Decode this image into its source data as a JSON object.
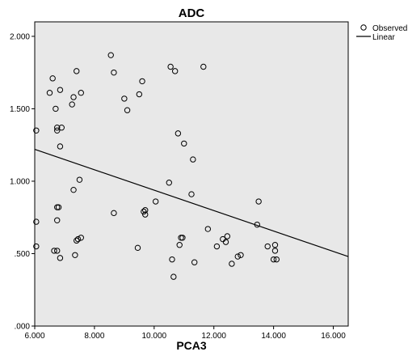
{
  "chart_data": {
    "type": "scatter",
    "title": "ADC",
    "xlabel": "PCA3",
    "ylabel": "",
    "xlim": [
      6.0,
      16.5
    ],
    "ylim": [
      0.0,
      2.1
    ],
    "x_ticks": [
      6.0,
      8.0,
      10.0,
      12.0,
      14.0,
      16.0
    ],
    "x_tick_labels": [
      "6.000",
      "8.000",
      "10.000",
      "12.000",
      "14.000",
      "16.000"
    ],
    "y_ticks": [
      0.0,
      0.5,
      1.0,
      1.5,
      2.0
    ],
    "y_tick_labels": [
      ".000",
      ".500",
      "1.000",
      "1.500",
      "2.000"
    ],
    "grid": false,
    "plot_background": "#e8e8e8",
    "legend_position": "top-right",
    "legend": [
      {
        "label": "Observed",
        "marker": "circle"
      },
      {
        "label": "Linear",
        "marker": "line"
      }
    ],
    "series": [
      {
        "name": "Observed",
        "kind": "points",
        "points": [
          [
            6.05,
            1.35
          ],
          [
            6.05,
            0.72
          ],
          [
            6.05,
            0.55
          ],
          [
            6.5,
            1.61
          ],
          [
            6.6,
            1.71
          ],
          [
            6.65,
            0.52
          ],
          [
            6.7,
            1.5
          ],
          [
            6.75,
            1.35
          ],
          [
            6.75,
            1.37
          ],
          [
            6.75,
            0.82
          ],
          [
            6.75,
            0.73
          ],
          [
            6.75,
            0.52
          ],
          [
            6.8,
            0.82
          ],
          [
            6.85,
            1.63
          ],
          [
            6.85,
            1.24
          ],
          [
            6.85,
            0.47
          ],
          [
            6.9,
            1.37
          ],
          [
            7.25,
            1.53
          ],
          [
            7.3,
            1.58
          ],
          [
            7.3,
            0.94
          ],
          [
            7.35,
            0.49
          ],
          [
            7.4,
            1.76
          ],
          [
            7.4,
            0.59
          ],
          [
            7.45,
            0.6
          ],
          [
            7.5,
            1.01
          ],
          [
            7.55,
            1.61
          ],
          [
            7.55,
            0.61
          ],
          [
            8.55,
            1.87
          ],
          [
            8.65,
            1.75
          ],
          [
            8.65,
            0.78
          ],
          [
            9.0,
            1.57
          ],
          [
            9.1,
            1.49
          ],
          [
            9.45,
            0.54
          ],
          [
            9.5,
            1.6
          ],
          [
            9.6,
            1.69
          ],
          [
            9.65,
            0.79
          ],
          [
            9.7,
            0.77
          ],
          [
            9.7,
            0.8
          ],
          [
            10.05,
            0.86
          ],
          [
            10.5,
            0.99
          ],
          [
            10.55,
            1.79
          ],
          [
            10.6,
            0.46
          ],
          [
            10.65,
            0.34
          ],
          [
            10.7,
            1.76
          ],
          [
            10.8,
            1.33
          ],
          [
            10.85,
            0.56
          ],
          [
            10.9,
            0.61
          ],
          [
            10.95,
            0.61
          ],
          [
            11.0,
            1.26
          ],
          [
            11.25,
            0.91
          ],
          [
            11.3,
            1.15
          ],
          [
            11.35,
            0.44
          ],
          [
            11.65,
            1.79
          ],
          [
            11.8,
            0.67
          ],
          [
            12.1,
            0.55
          ],
          [
            12.3,
            0.6
          ],
          [
            12.4,
            0.58
          ],
          [
            12.45,
            0.62
          ],
          [
            12.6,
            0.43
          ],
          [
            12.8,
            0.48
          ],
          [
            12.9,
            0.49
          ],
          [
            13.45,
            0.7
          ],
          [
            13.5,
            0.86
          ],
          [
            13.8,
            0.55
          ],
          [
            14.0,
            0.46
          ],
          [
            14.05,
            0.52
          ],
          [
            14.05,
            0.56
          ],
          [
            14.1,
            0.46
          ]
        ]
      },
      {
        "name": "Linear",
        "kind": "fit-line",
        "points": [
          [
            6.0,
            1.22
          ],
          [
            16.5,
            0.48
          ]
        ]
      }
    ]
  }
}
